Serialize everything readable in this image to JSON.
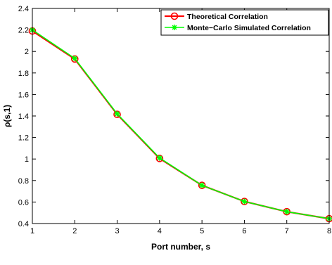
{
  "chart_data": {
    "type": "line",
    "xlabel": "Port number, s",
    "ylabel": "ρ(s,1)",
    "xlim": [
      1,
      8
    ],
    "ylim": [
      0.4,
      2.4
    ],
    "x_ticks": [
      "1",
      "2",
      "3",
      "4",
      "5",
      "6",
      "7",
      "8"
    ],
    "y_ticks": [
      "0.4",
      "0.6",
      "0.8",
      "1",
      "1.2",
      "1.4",
      "1.6",
      "1.8",
      "2",
      "2.2",
      "2.4"
    ],
    "x": [
      1,
      2,
      3,
      4,
      5,
      6,
      7,
      8
    ],
    "series": [
      {
        "name": "Theoretical Correlation",
        "color": "#ff0000",
        "marker": "circle",
        "values": [
          2.19,
          1.93,
          1.415,
          1.005,
          0.755,
          0.605,
          0.51,
          0.445
        ]
      },
      {
        "name": "Monte−Carlo Simulated Correlation",
        "color": "#00ff00",
        "marker": "asterisk",
        "values": [
          2.2,
          1.935,
          1.42,
          1.01,
          0.755,
          0.605,
          0.51,
          0.445
        ]
      }
    ],
    "grid": false,
    "legend_position": "top-right"
  }
}
